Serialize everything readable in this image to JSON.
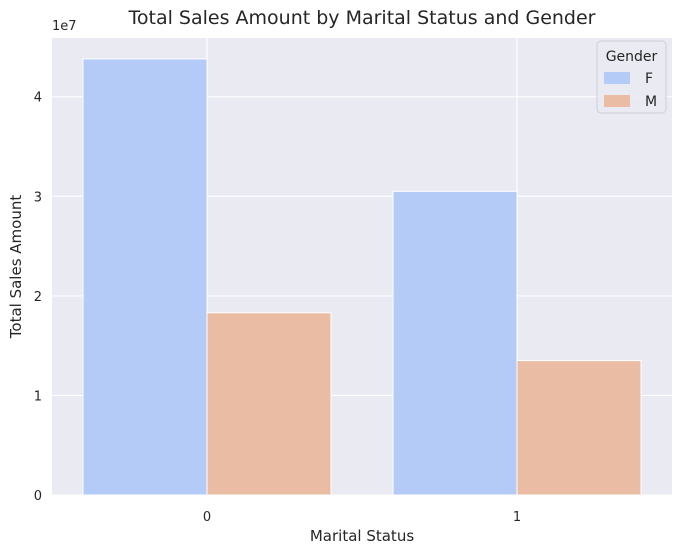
{
  "chart_data": {
    "type": "bar",
    "title": "Total Sales Amount by Marital Status and Gender",
    "xlabel": "Marital Status",
    "ylabel": "Total Sales Amount",
    "y_offset_label": "1e7",
    "y_scale": 10000000,
    "categories": [
      "0",
      "1"
    ],
    "series": [
      {
        "name": "F",
        "color": "#b3cbf6",
        "values": [
          43800000,
          30500000
        ]
      },
      {
        "name": "M",
        "color": "#eabca4",
        "values": [
          18300000,
          13500000
        ]
      }
    ],
    "ylim": [
      0,
      45900000
    ],
    "yticks": [
      0,
      10000000,
      20000000,
      30000000,
      40000000
    ],
    "ytick_labels": [
      "0",
      "1",
      "2",
      "3",
      "4"
    ],
    "legend_title": "Gender",
    "legend_position": "top-right",
    "grid": true,
    "colors": {
      "background": "#eaeaf2",
      "grid": "#ffffff",
      "text": "#262626"
    }
  }
}
